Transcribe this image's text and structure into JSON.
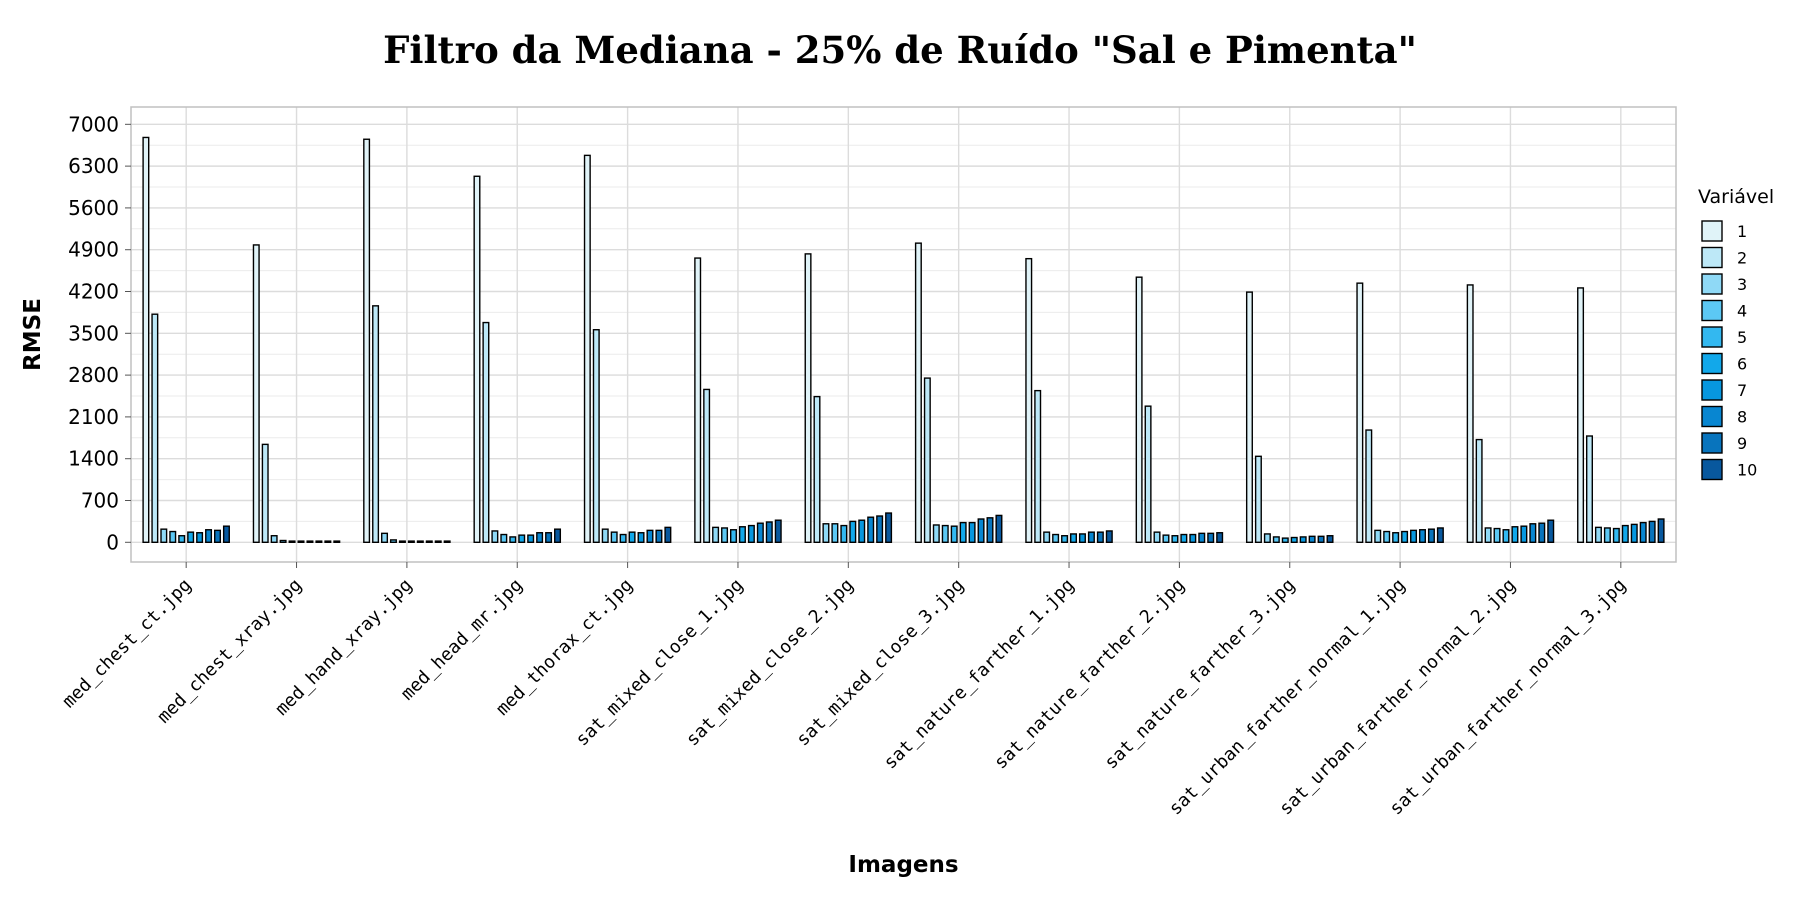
{
  "chart_data": {
    "type": "bar",
    "title": "Filtro da Mediana - 25% de Ruído \"Sal e Pimenta\"",
    "xlabel": "Imagens",
    "ylabel": "RMSE",
    "ylim": [
      -330,
      7290
    ],
    "yticks": [
      0,
      700,
      1400,
      2100,
      2800,
      3500,
      4200,
      4900,
      5600,
      6300,
      7000
    ],
    "grid": true,
    "legend_title": "Variável",
    "legend_position": "right",
    "categories": [
      "med_chest_ct.jpg",
      "med_chest_xray.jpg",
      "med_hand_xray.jpg",
      "med_head_mr.jpg",
      "med_thorax_ct.jpg",
      "sat_mixed_close_1.jpg",
      "sat_mixed_close_2.jpg",
      "sat_mixed_close_3.jpg",
      "sat_nature_farther_1.jpg",
      "sat_nature_farther_2.jpg",
      "sat_nature_farther_3.jpg",
      "sat_urban_farther_normal_1.jpg",
      "sat_urban_farther_normal_2.jpg",
      "sat_urban_farther_normal_3.jpg"
    ],
    "series": [
      {
        "name": "1",
        "color": "#e0f3f8",
        "values": [
          6780,
          4980,
          6750,
          6130,
          6480,
          4760,
          4830,
          5010,
          4750,
          4440,
          4190,
          4340,
          4310,
          4260
        ]
      },
      {
        "name": "2",
        "color": "#bde8f7",
        "values": [
          3820,
          1640,
          3960,
          3680,
          3560,
          2560,
          2440,
          2750,
          2540,
          2280,
          1440,
          1880,
          1720,
          1780
        ]
      },
      {
        "name": "3",
        "color": "#8fd9f6",
        "values": [
          220,
          110,
          150,
          190,
          220,
          250,
          310,
          290,
          170,
          170,
          140,
          200,
          240,
          250
        ]
      },
      {
        "name": "4",
        "color": "#5cc8f4",
        "values": [
          180,
          30,
          40,
          130,
          170,
          240,
          310,
          280,
          130,
          120,
          90,
          180,
          230,
          240
        ]
      },
      {
        "name": "5",
        "color": "#33b8f0",
        "values": [
          110,
          20,
          20,
          90,
          130,
          210,
          280,
          270,
          110,
          110,
          70,
          160,
          210,
          230
        ]
      },
      {
        "name": "6",
        "color": "#12a8ea",
        "values": [
          170,
          20,
          20,
          120,
          170,
          260,
          350,
          330,
          140,
          130,
          80,
          180,
          260,
          280
        ]
      },
      {
        "name": "7",
        "color": "#0797df",
        "values": [
          160,
          20,
          20,
          120,
          160,
          280,
          370,
          330,
          140,
          130,
          90,
          200,
          270,
          300
        ]
      },
      {
        "name": "8",
        "color": "#0886d1",
        "values": [
          210,
          20,
          20,
          160,
          200,
          320,
          420,
          390,
          170,
          150,
          100,
          210,
          310,
          330
        ]
      },
      {
        "name": "9",
        "color": "#0874bd",
        "values": [
          200,
          20,
          20,
          160,
          200,
          340,
          440,
          410,
          170,
          150,
          100,
          220,
          320,
          350
        ]
      },
      {
        "name": "10",
        "color": "#08589e",
        "values": [
          270,
          20,
          20,
          220,
          250,
          370,
          490,
          450,
          190,
          160,
          110,
          240,
          370,
          390
        ]
      }
    ]
  }
}
